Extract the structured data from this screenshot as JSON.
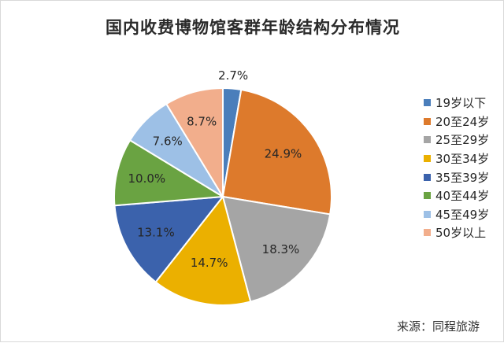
{
  "chart_data": {
    "type": "pie",
    "title": "国内收费博物馆客群年龄结构分布情况",
    "source": "来源：同程旅游",
    "slices": [
      {
        "name": "19岁以下",
        "value": 2.7,
        "label": "2.7%",
        "color": "#4a7ebb"
      },
      {
        "name": "20至24岁",
        "value": 24.9,
        "label": "24.9%",
        "color": "#dd7a2c"
      },
      {
        "name": "25至29岁",
        "value": 18.3,
        "label": "18.3%",
        "color": "#a5a5a5"
      },
      {
        "name": "30至34岁",
        "value": 14.7,
        "label": "14.7%",
        "color": "#ebb000"
      },
      {
        "name": "35至39岁",
        "value": 13.1,
        "label": "13.1%",
        "color": "#3b62ac"
      },
      {
        "name": "40至44岁",
        "value": 10.0,
        "label": "10.0%",
        "color": "#6aa342"
      },
      {
        "name": "45至49岁",
        "value": 7.6,
        "label": "7.6%",
        "color": "#9dc0e6"
      },
      {
        "name": "50岁以上",
        "value": 8.7,
        "label": "8.7%",
        "color": "#f2ae8c"
      }
    ],
    "legend_position": "right"
  }
}
